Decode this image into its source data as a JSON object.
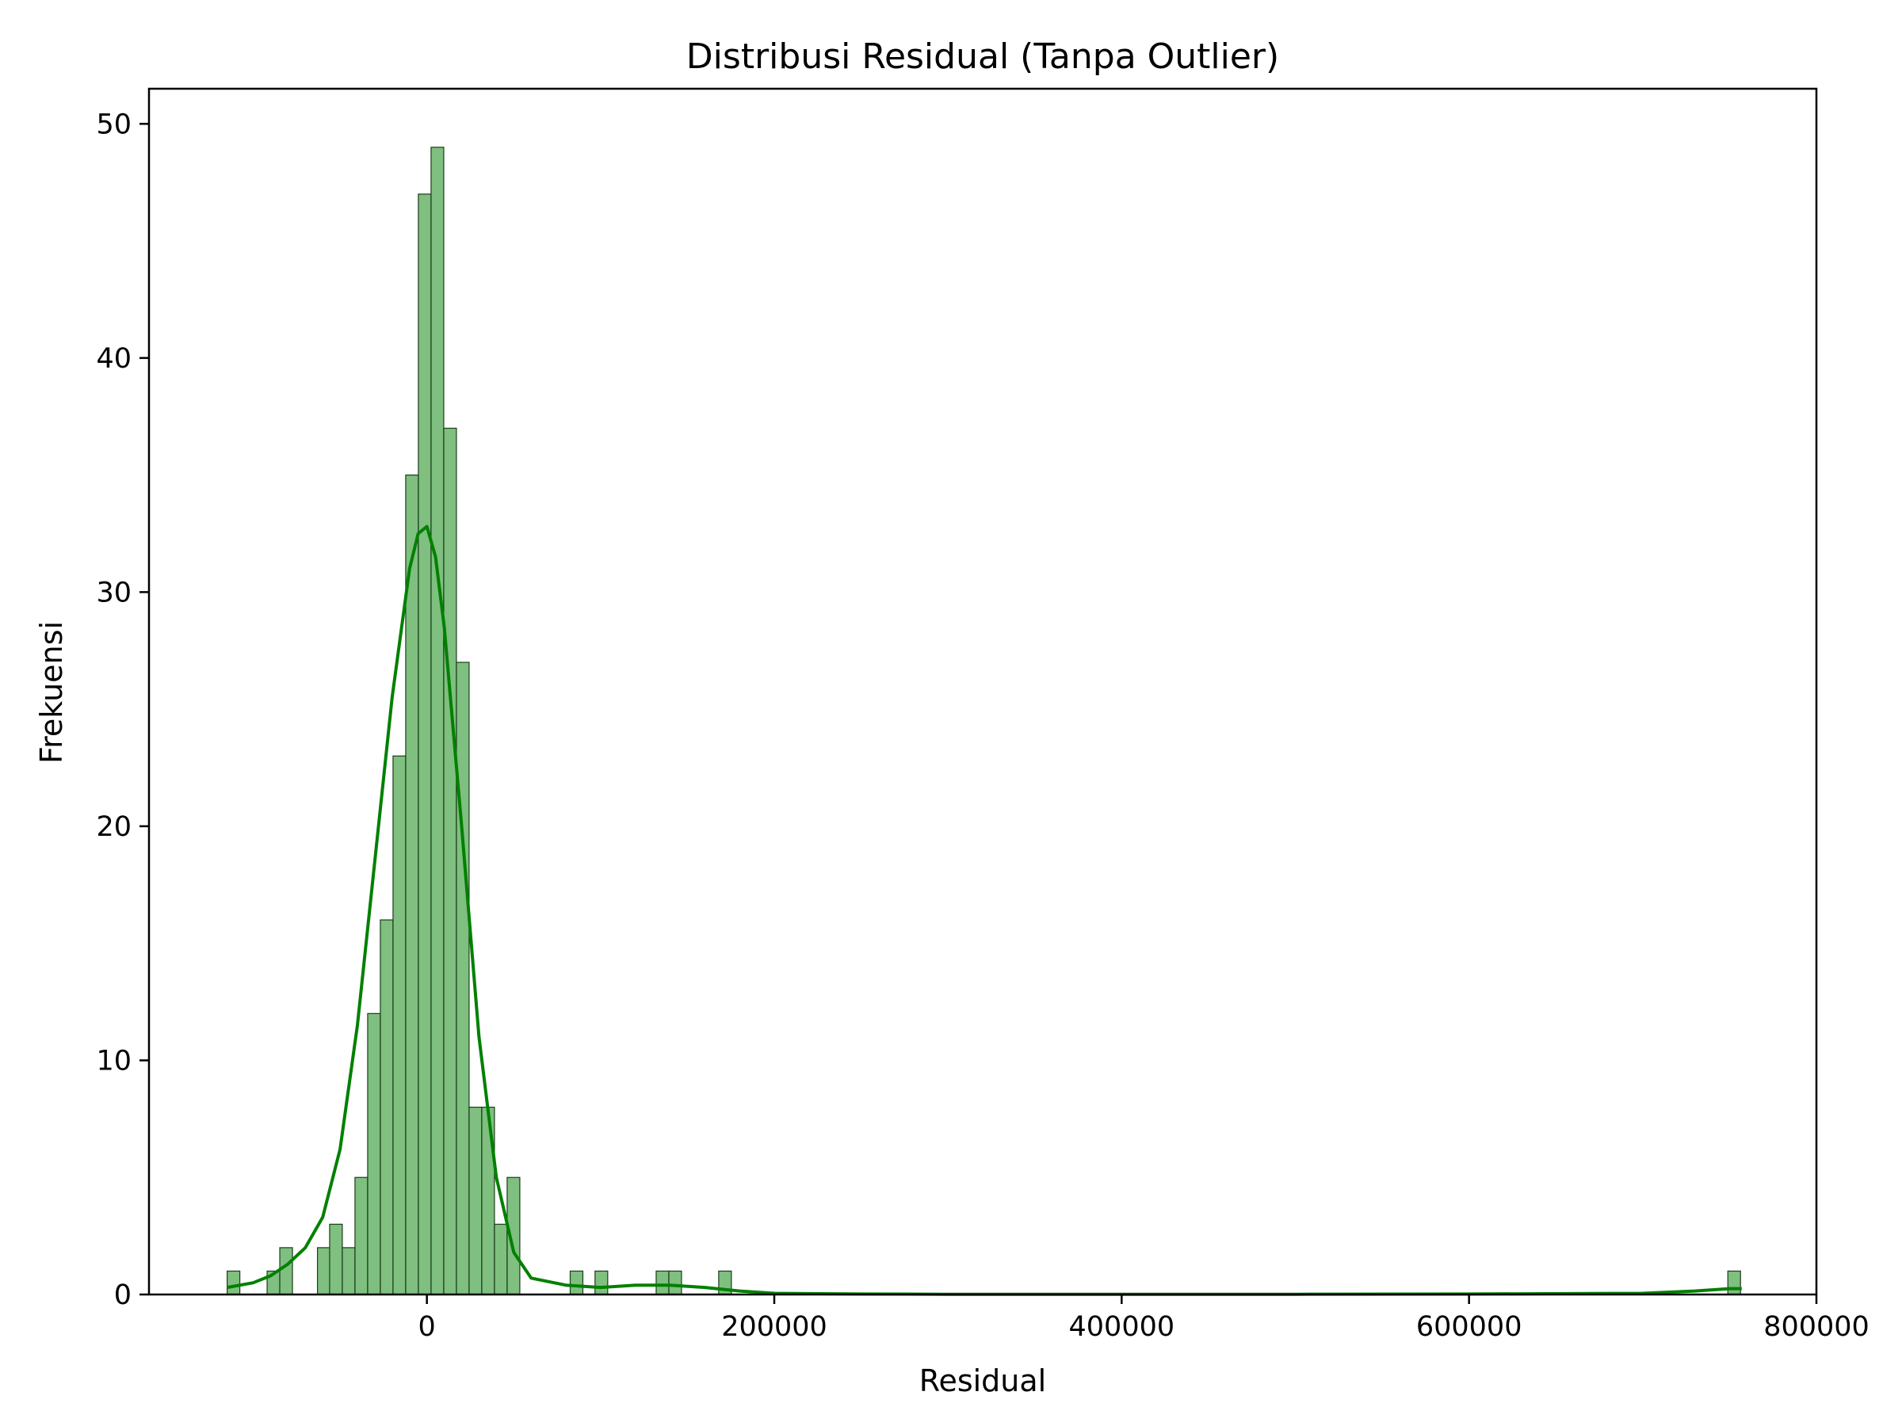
{
  "chart_data": {
    "type": "bar",
    "subtype": "histogram-with-kde",
    "title": "Distribusi Residual (Tanpa Outlier)",
    "xlabel": "Residual",
    "ylabel": "Frekuensi",
    "xlim": [
      -160000,
      800000
    ],
    "ylim": [
      0,
      51.5
    ],
    "xticks": [
      0,
      200000,
      400000,
      600000,
      800000
    ],
    "yticks": [
      0,
      10,
      20,
      30,
      40,
      50
    ],
    "grid": false,
    "legend": "none",
    "colors": {
      "bar_fill": "#7fbf7f",
      "bar_edge": "#1a3d1a",
      "kde_line": "#008000",
      "axis": "#000000"
    },
    "bin_width": 7300,
    "bins": [
      {
        "x0": -115000,
        "count": 1
      },
      {
        "x0": -92000,
        "count": 1
      },
      {
        "x0": -84700,
        "count": 2
      },
      {
        "x0": -63000,
        "count": 2
      },
      {
        "x0": -56000,
        "count": 3
      },
      {
        "x0": -48700,
        "count": 2
      },
      {
        "x0": -41400,
        "count": 5
      },
      {
        "x0": -34100,
        "count": 12
      },
      {
        "x0": -26800,
        "count": 16
      },
      {
        "x0": -19500,
        "count": 23
      },
      {
        "x0": -12200,
        "count": 35
      },
      {
        "x0": -4900,
        "count": 47
      },
      {
        "x0": 2400,
        "count": 49
      },
      {
        "x0": 9700,
        "count": 37
      },
      {
        "x0": 17000,
        "count": 27
      },
      {
        "x0": 24300,
        "count": 8
      },
      {
        "x0": 31600,
        "count": 8
      },
      {
        "x0": 38900,
        "count": 3
      },
      {
        "x0": 46200,
        "count": 5
      },
      {
        "x0": 82500,
        "count": 1
      },
      {
        "x0": 96800,
        "count": 1
      },
      {
        "x0": 132000,
        "count": 1
      },
      {
        "x0": 139300,
        "count": 1
      },
      {
        "x0": 168000,
        "count": 1
      },
      {
        "x0": 749000,
        "count": 1
      }
    ],
    "kde": {
      "x": [
        -115000,
        -100000,
        -90000,
        -80000,
        -70000,
        -60000,
        -50000,
        -40000,
        -30000,
        -20000,
        -10000,
        -5000,
        0,
        5000,
        10000,
        20000,
        30000,
        40000,
        50000,
        60000,
        80000,
        100000,
        120000,
        140000,
        160000,
        180000,
        200000,
        250000,
        300000,
        400000,
        500000,
        600000,
        700000,
        730000,
        750000,
        757000
      ],
      "y": [
        0.3,
        0.5,
        0.8,
        1.3,
        2.0,
        3.3,
        6.2,
        11.5,
        18.5,
        25.5,
        31.0,
        32.5,
        32.8,
        31.5,
        28.5,
        20.0,
        11.0,
        5.0,
        1.8,
        0.7,
        0.4,
        0.3,
        0.4,
        0.4,
        0.3,
        0.15,
        0.05,
        0.02,
        0.01,
        0.01,
        0.01,
        0.02,
        0.05,
        0.15,
        0.25,
        0.25
      ]
    }
  }
}
